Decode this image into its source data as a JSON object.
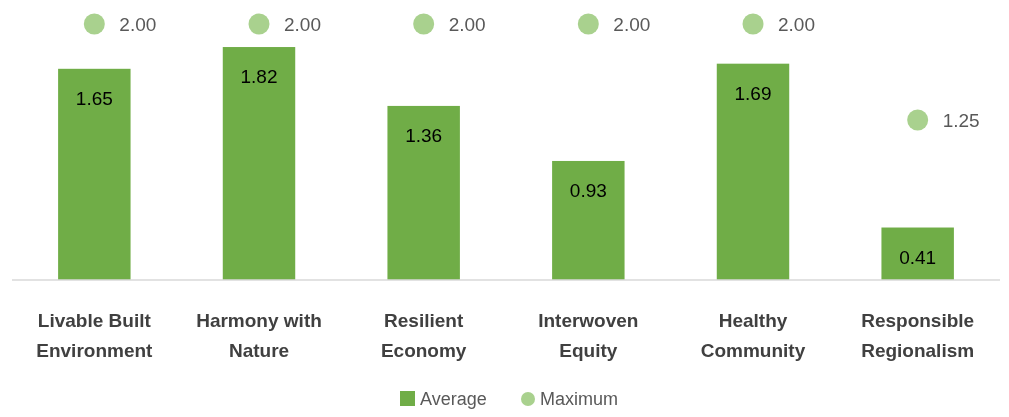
{
  "chart_data": {
    "type": "bar",
    "categories": [
      "Livable Built Environment",
      "Harmony with Nature",
      "Resilient Economy",
      "Interwoven Equity",
      "Healthy Community",
      "Responsible Regionalism"
    ],
    "series": [
      {
        "name": "Average",
        "color": "#70ad47",
        "values": [
          1.65,
          1.82,
          1.36,
          0.93,
          1.69,
          0.41
        ],
        "value_labels": [
          "1.65",
          "1.82",
          "1.36",
          "0.93",
          "1.69",
          "0.41"
        ]
      },
      {
        "name": "Maximum",
        "type": "scatter",
        "color": "#a9d18e",
        "values": [
          2,
          2,
          2,
          2,
          2,
          1.25
        ],
        "value_labels": [
          "2.00",
          "2.00",
          "2.00",
          "2.00",
          "2.00",
          "1.25"
        ]
      }
    ],
    "tick_labels": "x",
    "legend": "bottom",
    "marker": "circle"
  }
}
